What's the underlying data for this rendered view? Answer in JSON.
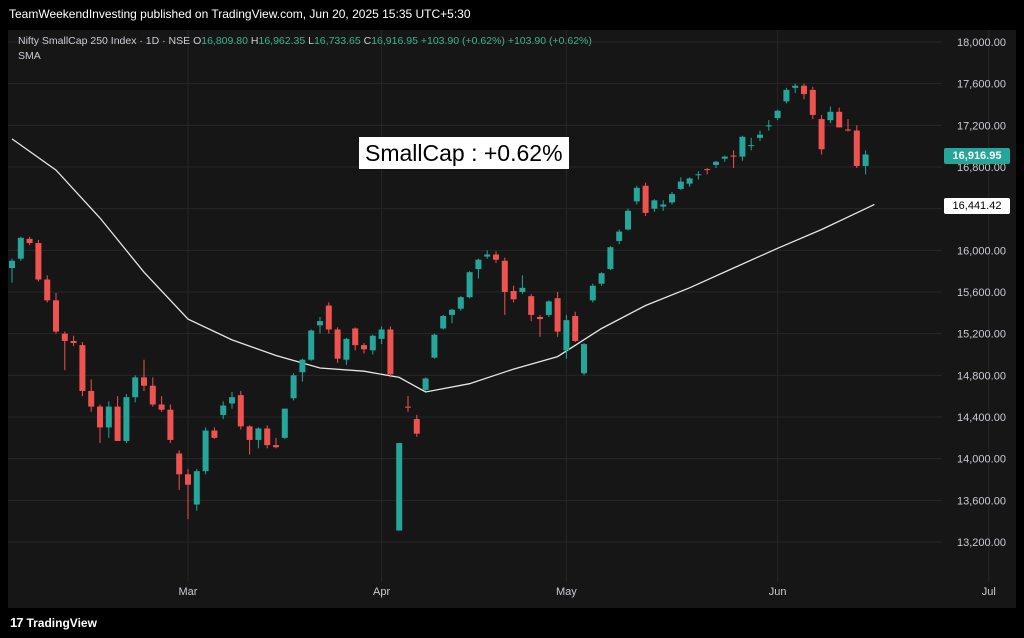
{
  "header": {
    "published_text": "TeamWeekendInvesting published on TradingView.com, Jun 20, 2025 15:35 UTC+5:30"
  },
  "legend": {
    "symbol": "Nifty SmallCap 250 Index · 1D · NSE",
    "open_label": "O",
    "open": "16,809.80",
    "high_label": "H",
    "high": "16,962.35",
    "low_label": "L",
    "low": "16,733.65",
    "close_label": "C",
    "close": "16,916.95",
    "change": "+103.90 (+0.62%)",
    "change2": "+103.90 (+0.62%)",
    "indicator": "SMA"
  },
  "annotation": {
    "text": "SmallCap : +0.62%"
  },
  "badges": {
    "last_price": "16,916.95",
    "sma_value": "16,441.42"
  },
  "footer": {
    "brand": "TradingView",
    "brand_mark": "17"
  },
  "colors": {
    "up": "#26a69a",
    "down": "#ef5350",
    "sma": "#e6e6e6",
    "grid": "#262626",
    "background": "#161616"
  },
  "chart_data": {
    "type": "candlestick",
    "title": "",
    "xlabel": "",
    "ylabel": "",
    "ylim": [
      13000,
      18100
    ],
    "y_ticks": [
      "18,000.00",
      "17,600.00",
      "17,200.00",
      "16,800.00",
      "16,400.00",
      "16,000.00",
      "15,600.00",
      "15,200.00",
      "14,800.00",
      "14,400.00",
      "14,000.00",
      "13,600.00",
      "13,200.00"
    ],
    "x_ticks": [
      {
        "label": "Mar",
        "index": 20
      },
      {
        "label": "Apr",
        "index": 42
      },
      {
        "label": "May",
        "index": 63
      },
      {
        "label": "Jun",
        "index": 87
      },
      {
        "label": "Jul",
        "index": 111
      }
    ],
    "grid": true,
    "candles": [
      {
        "o": 15830,
        "h": 15920,
        "l": 15690,
        "c": 15900
      },
      {
        "o": 15920,
        "h": 16130,
        "l": 15900,
        "c": 16120
      },
      {
        "o": 16110,
        "h": 16130,
        "l": 16050,
        "c": 16070
      },
      {
        "o": 16070,
        "h": 16100,
        "l": 15700,
        "c": 15720
      },
      {
        "o": 15720,
        "h": 15760,
        "l": 15500,
        "c": 15520
      },
      {
        "o": 15520,
        "h": 15590,
        "l": 15200,
        "c": 15220
      },
      {
        "o": 15200,
        "h": 15220,
        "l": 14850,
        "c": 15130
      },
      {
        "o": 15130,
        "h": 15180,
        "l": 15080,
        "c": 15110
      },
      {
        "o": 15090,
        "h": 15120,
        "l": 14600,
        "c": 14650
      },
      {
        "o": 14650,
        "h": 14760,
        "l": 14450,
        "c": 14500
      },
      {
        "o": 14500,
        "h": 14520,
        "l": 14150,
        "c": 14300
      },
      {
        "o": 14300,
        "h": 14550,
        "l": 14200,
        "c": 14500
      },
      {
        "o": 14500,
        "h": 14600,
        "l": 14180,
        "c": 14170
      },
      {
        "o": 14170,
        "h": 14620,
        "l": 14150,
        "c": 14590
      },
      {
        "o": 14590,
        "h": 14800,
        "l": 14540,
        "c": 14780
      },
      {
        "o": 14780,
        "h": 14950,
        "l": 14650,
        "c": 14700
      },
      {
        "o": 14700,
        "h": 14780,
        "l": 14500,
        "c": 14520
      },
      {
        "o": 14520,
        "h": 14600,
        "l": 14450,
        "c": 14470
      },
      {
        "o": 14470,
        "h": 14520,
        "l": 14150,
        "c": 14180
      },
      {
        "o": 14050,
        "h": 14080,
        "l": 13700,
        "c": 13850
      },
      {
        "o": 13850,
        "h": 13900,
        "l": 13420,
        "c": 13750
      },
      {
        "o": 13560,
        "h": 13900,
        "l": 13500,
        "c": 13880
      },
      {
        "o": 13880,
        "h": 14300,
        "l": 13850,
        "c": 14270
      },
      {
        "o": 14270,
        "h": 14300,
        "l": 14190,
        "c": 14200
      },
      {
        "o": 14420,
        "h": 14550,
        "l": 14380,
        "c": 14510
      },
      {
        "o": 14530,
        "h": 14640,
        "l": 14480,
        "c": 14590
      },
      {
        "o": 14610,
        "h": 14650,
        "l": 14280,
        "c": 14310
      },
      {
        "o": 14310,
        "h": 14320,
        "l": 14040,
        "c": 14180
      },
      {
        "o": 14180,
        "h": 14300,
        "l": 14100,
        "c": 14290
      },
      {
        "o": 14290,
        "h": 14320,
        "l": 14100,
        "c": 14130
      },
      {
        "o": 14130,
        "h": 14200,
        "l": 14100,
        "c": 14110
      },
      {
        "o": 14200,
        "h": 14480,
        "l": 14190,
        "c": 14480
      },
      {
        "o": 14580,
        "h": 14820,
        "l": 14560,
        "c": 14800
      },
      {
        "o": 14830,
        "h": 14960,
        "l": 14740,
        "c": 14950
      },
      {
        "o": 14950,
        "h": 15240,
        "l": 14940,
        "c": 15230
      },
      {
        "o": 15280,
        "h": 15360,
        "l": 15200,
        "c": 15320
      },
      {
        "o": 15470,
        "h": 15500,
        "l": 15200,
        "c": 15240
      },
      {
        "o": 15240,
        "h": 15260,
        "l": 14920,
        "c": 14960
      },
      {
        "o": 14950,
        "h": 15160,
        "l": 14900,
        "c": 15150
      },
      {
        "o": 15250,
        "h": 15260,
        "l": 15040,
        "c": 15090
      },
      {
        "o": 15090,
        "h": 15110,
        "l": 15010,
        "c": 15050
      },
      {
        "o": 15040,
        "h": 15190,
        "l": 15000,
        "c": 15180
      },
      {
        "o": 15150,
        "h": 15270,
        "l": 15100,
        "c": 15240
      },
      {
        "o": 15240,
        "h": 15270,
        "l": 14780,
        "c": 14810
      },
      {
        "o": 13310,
        "h": 14150,
        "l": 13310,
        "c": 14150
      },
      {
        "o": 14500,
        "h": 14600,
        "l": 14450,
        "c": 14490
      },
      {
        "o": 14380,
        "h": 14420,
        "l": 14210,
        "c": 14240
      },
      {
        "o": 14660,
        "h": 14780,
        "l": 14650,
        "c": 14770
      },
      {
        "o": 14970,
        "h": 15200,
        "l": 14960,
        "c": 15190
      },
      {
        "o": 15250,
        "h": 15380,
        "l": 15240,
        "c": 15370
      },
      {
        "o": 15380,
        "h": 15440,
        "l": 15300,
        "c": 15430
      },
      {
        "o": 15440,
        "h": 15560,
        "l": 15420,
        "c": 15550
      },
      {
        "o": 15550,
        "h": 15800,
        "l": 15540,
        "c": 15790
      },
      {
        "o": 15820,
        "h": 15920,
        "l": 15730,
        "c": 15910
      },
      {
        "o": 15940,
        "h": 16000,
        "l": 15920,
        "c": 15960
      },
      {
        "o": 15960,
        "h": 15990,
        "l": 15880,
        "c": 15910
      },
      {
        "o": 15900,
        "h": 15930,
        "l": 15380,
        "c": 15600
      },
      {
        "o": 15610,
        "h": 15660,
        "l": 15500,
        "c": 15530
      },
      {
        "o": 15600,
        "h": 15760,
        "l": 15580,
        "c": 15640
      },
      {
        "o": 15560,
        "h": 15580,
        "l": 15320,
        "c": 15380
      },
      {
        "o": 15360,
        "h": 15380,
        "l": 15170,
        "c": 15340
      },
      {
        "o": 15380,
        "h": 15520,
        "l": 15360,
        "c": 15510
      },
      {
        "o": 15540,
        "h": 15600,
        "l": 15170,
        "c": 15220
      },
      {
        "o": 15040,
        "h": 15380,
        "l": 14960,
        "c": 15330
      },
      {
        "o": 15370,
        "h": 15410,
        "l": 15120,
        "c": 15130
      },
      {
        "o": 14820,
        "h": 15110,
        "l": 14800,
        "c": 15100
      },
      {
        "o": 15520,
        "h": 15680,
        "l": 15500,
        "c": 15660
      },
      {
        "o": 15680,
        "h": 15790,
        "l": 15660,
        "c": 15780
      },
      {
        "o": 15820,
        "h": 16040,
        "l": 15810,
        "c": 16030
      },
      {
        "o": 16090,
        "h": 16200,
        "l": 16060,
        "c": 16180
      },
      {
        "o": 16200,
        "h": 16400,
        "l": 16190,
        "c": 16380
      },
      {
        "o": 16470,
        "h": 16620,
        "l": 16440,
        "c": 16600
      },
      {
        "o": 16620,
        "h": 16650,
        "l": 16330,
        "c": 16360
      },
      {
        "o": 16400,
        "h": 16490,
        "l": 16370,
        "c": 16480
      },
      {
        "o": 16420,
        "h": 16480,
        "l": 16380,
        "c": 16440
      },
      {
        "o": 16460,
        "h": 16560,
        "l": 16440,
        "c": 16540
      },
      {
        "o": 16590,
        "h": 16700,
        "l": 16580,
        "c": 16660
      },
      {
        "o": 16640,
        "h": 16700,
        "l": 16610,
        "c": 16690
      },
      {
        "o": 16730,
        "h": 16760,
        "l": 16680,
        "c": 16730
      },
      {
        "o": 16780,
        "h": 16790,
        "l": 16730,
        "c": 16770
      },
      {
        "o": 16820,
        "h": 16860,
        "l": 16790,
        "c": 16850
      },
      {
        "o": 16880,
        "h": 16910,
        "l": 16850,
        "c": 16900
      },
      {
        "o": 16910,
        "h": 16960,
        "l": 16790,
        "c": 16900
      },
      {
        "o": 16900,
        "h": 17100,
        "l": 16860,
        "c": 17090
      },
      {
        "o": 17000,
        "h": 17080,
        "l": 16960,
        "c": 17010
      },
      {
        "o": 17080,
        "h": 17150,
        "l": 17050,
        "c": 17110
      },
      {
        "o": 17190,
        "h": 17250,
        "l": 17150,
        "c": 17200
      },
      {
        "o": 17270,
        "h": 17350,
        "l": 17250,
        "c": 17340
      },
      {
        "o": 17430,
        "h": 17560,
        "l": 17410,
        "c": 17540
      },
      {
        "o": 17560,
        "h": 17600,
        "l": 17510,
        "c": 17580
      },
      {
        "o": 17580,
        "h": 17600,
        "l": 17450,
        "c": 17500
      },
      {
        "o": 17540,
        "h": 17570,
        "l": 17260,
        "c": 17300
      },
      {
        "o": 17260,
        "h": 17300,
        "l": 16920,
        "c": 16970
      },
      {
        "o": 17250,
        "h": 17380,
        "l": 17220,
        "c": 17330
      },
      {
        "o": 17330,
        "h": 17370,
        "l": 17180,
        "c": 17180
      },
      {
        "o": 17160,
        "h": 17260,
        "l": 17140,
        "c": 17150
      },
      {
        "o": 17150,
        "h": 17200,
        "l": 16790,
        "c": 16810
      },
      {
        "o": 16810,
        "h": 16960,
        "l": 16730,
        "c": 16920
      }
    ],
    "sma_name": "SMA",
    "sma": [
      {
        "i": 0,
        "v": 17070
      },
      {
        "i": 5,
        "v": 16770
      },
      {
        "i": 10,
        "v": 16310
      },
      {
        "i": 15,
        "v": 15790
      },
      {
        "i": 20,
        "v": 15340
      },
      {
        "i": 25,
        "v": 15140
      },
      {
        "i": 30,
        "v": 14990
      },
      {
        "i": 35,
        "v": 14870
      },
      {
        "i": 40,
        "v": 14840
      },
      {
        "i": 44,
        "v": 14780
      },
      {
        "i": 47,
        "v": 14640
      },
      {
        "i": 52,
        "v": 14720
      },
      {
        "i": 57,
        "v": 14860
      },
      {
        "i": 62,
        "v": 14980
      },
      {
        "i": 67,
        "v": 15250
      },
      {
        "i": 72,
        "v": 15470
      },
      {
        "i": 77,
        "v": 15640
      },
      {
        "i": 82,
        "v": 15830
      },
      {
        "i": 87,
        "v": 16020
      },
      {
        "i": 92,
        "v": 16200
      },
      {
        "i": 97,
        "v": 16400
      },
      {
        "i": 98,
        "v": 16441
      }
    ]
  }
}
